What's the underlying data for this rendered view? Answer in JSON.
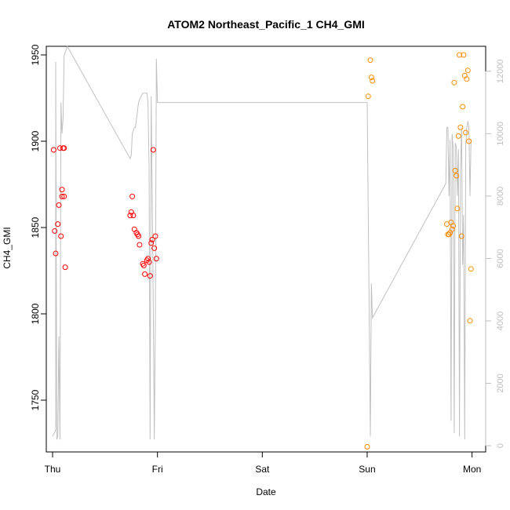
{
  "chart_data": {
    "type": "scatter",
    "title": "ATOM2 Northeast_Pacific_1 CH4_GMI",
    "xlabel": "Date",
    "ylabel": "CH4_GMI",
    "x_ticks": [
      "Thu",
      "Fri",
      "Sat",
      "Sun",
      "Mon"
    ],
    "x_range_days": [
      -0.06,
      4.13
    ],
    "ylim": [
      1720,
      1955
    ],
    "y_ticks": [
      1750,
      1800,
      1850,
      1900,
      1950
    ],
    "y2lim": [
      -200,
      12800
    ],
    "y2_ticks": [
      0,
      2000,
      4000,
      6000,
      8000,
      10000,
      12000
    ],
    "colors": {
      "series1": "#ff0000",
      "series2": "#ff8c00",
      "line": "#c0c0c0"
    },
    "series": [
      {
        "color": "#ff0000",
        "x": [
          0.01,
          0.02,
          0.03,
          0.05,
          0.06,
          0.07,
          0.08,
          0.09,
          0.09,
          0.1,
          0.11,
          0.12,
          0.11,
          0.74,
          0.75,
          0.76,
          0.77,
          0.78,
          0.8,
          0.81,
          0.82,
          0.83,
          0.86,
          0.87,
          0.88,
          0.9,
          0.91,
          0.92,
          0.93,
          0.94,
          0.95,
          0.96,
          0.97,
          0.98,
          0.99
        ],
        "y": [
          1895,
          1848,
          1835,
          1852,
          1863,
          1896,
          1845,
          1872,
          1868,
          1896,
          1896,
          1827,
          1868,
          1857,
          1859,
          1868,
          1857,
          1849,
          1847,
          1846,
          1845,
          1840,
          1829,
          1828,
          1823,
          1831,
          1832,
          1830,
          1822,
          1841,
          1843,
          1895,
          1838,
          1845,
          1832
        ]
      },
      {
        "color": "#ff8c00",
        "x": [
          3.0,
          3.01,
          3.03,
          3.04,
          3.05,
          3.76,
          3.77,
          3.78,
          3.79,
          3.8,
          3.81,
          3.82,
          3.83,
          3.84,
          3.85,
          3.86,
          3.87,
          3.88,
          3.89,
          3.9,
          3.91,
          3.92,
          3.93,
          3.94,
          3.95,
          3.96,
          3.97,
          3.98,
          3.99
        ],
        "y": [
          1723,
          1926,
          1947,
          1937,
          1935,
          1852,
          1846,
          1846,
          1847,
          1853,
          1849,
          1851,
          1934,
          1883,
          1880,
          1861,
          1903,
          1950,
          1908,
          1845,
          1920,
          1950,
          1938,
          1905,
          1936,
          1941,
          1900,
          1796,
          1826
        ]
      }
    ],
    "right_axis_line": {
      "color": "#c0c0c0",
      "x": [
        0.0,
        0.03,
        0.03,
        0.04,
        0.05,
        0.06,
        0.07,
        0.08,
        0.09,
        0.1,
        0.11,
        0.12,
        0.14,
        0.74,
        0.75,
        0.76,
        0.78,
        0.79,
        0.82,
        0.83,
        0.86,
        0.9,
        0.91,
        0.92,
        0.93,
        0.94,
        0.95,
        0.96,
        0.97,
        0.98,
        0.99,
        1.0,
        3.0,
        3.03,
        3.04,
        3.05,
        3.75,
        3.76,
        3.77,
        3.78,
        3.79,
        3.8,
        3.81,
        3.82,
        3.83,
        3.84,
        3.85,
        3.86,
        3.87,
        3.88,
        3.89,
        3.9,
        3.91,
        3.92,
        3.93,
        3.94,
        3.95,
        3.96,
        3.97,
        3.98,
        3.99,
        4.0
      ],
      "y": [
        300,
        500,
        12300,
        200,
        300,
        3500,
        200,
        11000,
        10000,
        10500,
        12500,
        12600,
        12800,
        9200,
        9300,
        10000,
        10200,
        10200,
        11000,
        11100,
        11300,
        11300,
        11000,
        9000,
        200,
        11200,
        8000,
        4500,
        200,
        4000,
        12400,
        11000,
        11000,
        300,
        5200,
        4100,
        8400,
        10200,
        10200,
        8000,
        9800,
        800,
        10000,
        9500,
        400,
        9700,
        9600,
        8000,
        9500,
        300,
        8800,
        10200,
        5800,
        7400,
        200,
        9600,
        10200,
        10400,
        10200,
        8000,
        9800,
        9800
      ]
    }
  }
}
